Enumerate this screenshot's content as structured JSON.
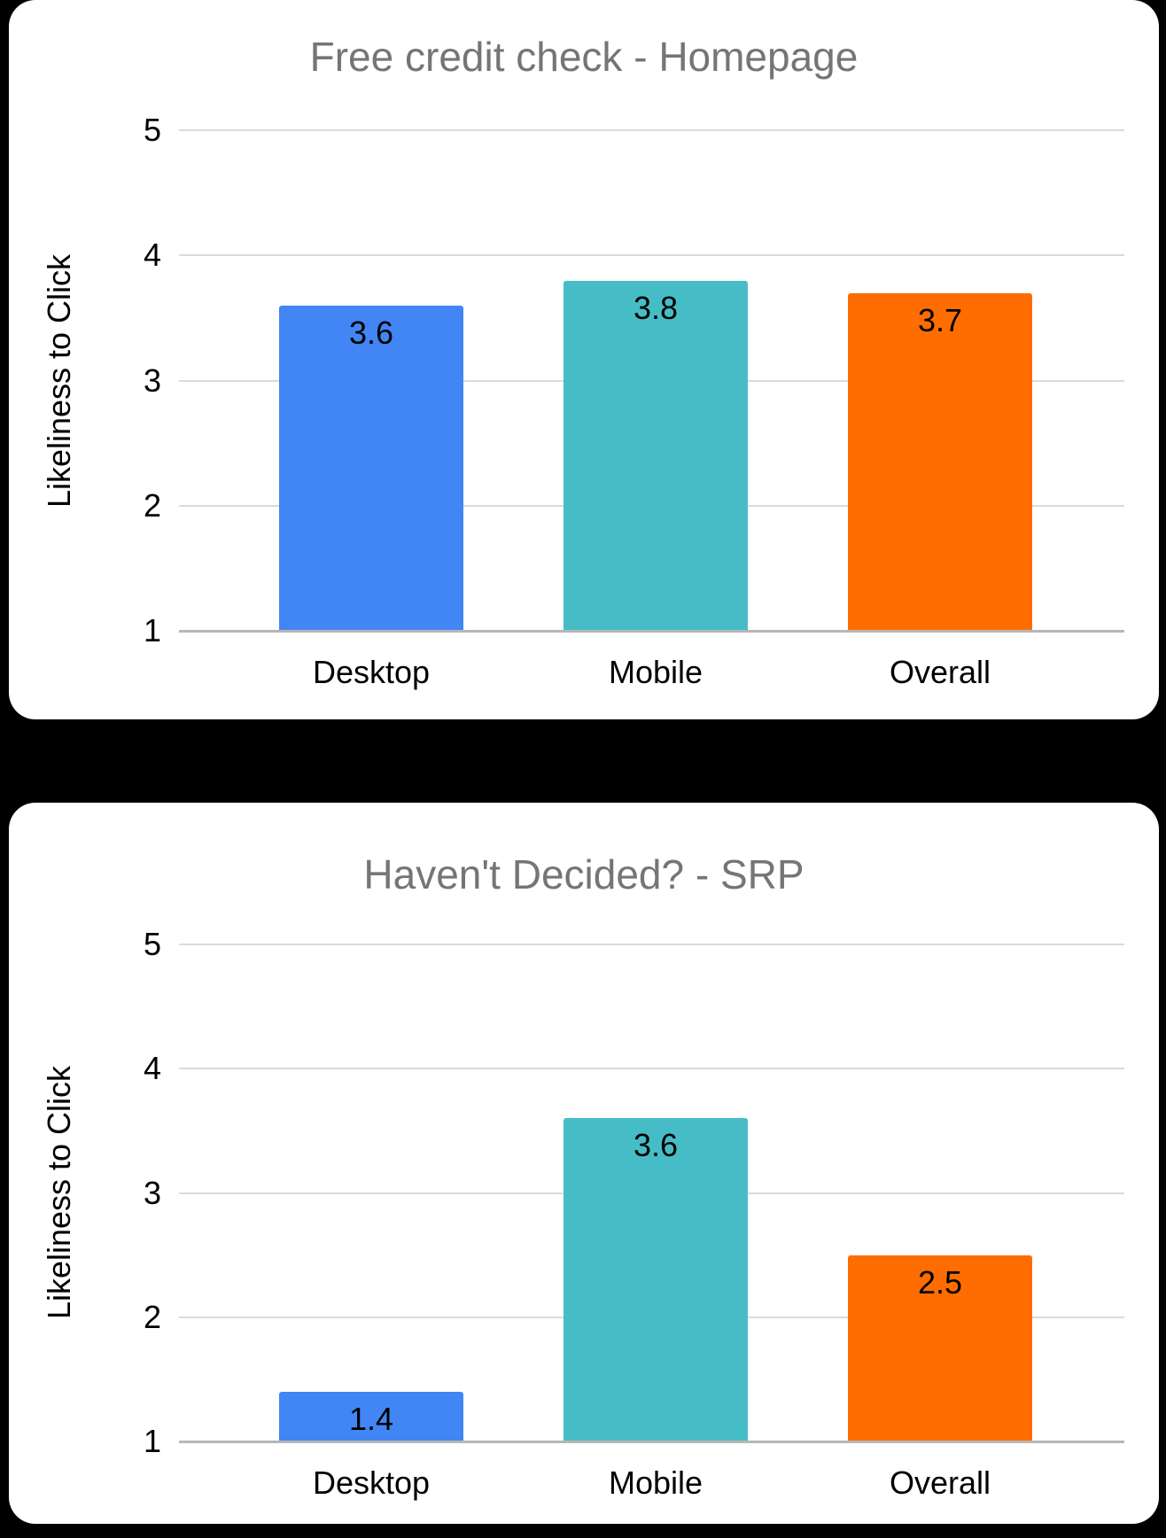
{
  "colors": {
    "page_background": "#000000",
    "card_background": "#ffffff",
    "title_text": "#757575",
    "axis_text": "#000000",
    "gridline": "#dadada",
    "baseline": "#b7b7b7"
  },
  "chart_data": [
    {
      "type": "bar",
      "title": "Free credit check - Homepage",
      "ylabel": "Likeliness to Click",
      "xlabel": "",
      "categories": [
        "Desktop",
        "Mobile",
        "Overall"
      ],
      "values": [
        3.6,
        3.8,
        3.7
      ],
      "value_labels": [
        "3.6",
        "3.8",
        "3.7"
      ],
      "bar_colors": [
        "#4285f4",
        "#46bdc6",
        "#ff6d01"
      ],
      "ylim": [
        1,
        5
      ],
      "yticks": [
        1,
        2,
        3,
        4,
        5
      ],
      "grid": true,
      "legend": "none"
    },
    {
      "type": "bar",
      "title": "Haven't Decided? - SRP",
      "ylabel": "Likeliness to Click",
      "xlabel": "",
      "categories": [
        "Desktop",
        "Mobile",
        "Overall"
      ],
      "values": [
        1.4,
        3.6,
        2.5
      ],
      "value_labels": [
        "1.4",
        "3.6",
        "2.5"
      ],
      "bar_colors": [
        "#4285f4",
        "#46bdc6",
        "#ff6d01"
      ],
      "ylim": [
        1,
        5
      ],
      "yticks": [
        1,
        2,
        3,
        4,
        5
      ],
      "grid": true,
      "legend": "none"
    }
  ]
}
